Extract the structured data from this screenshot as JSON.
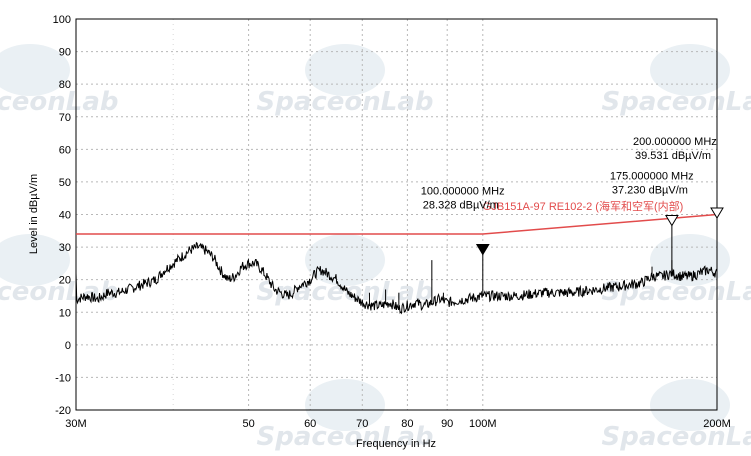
{
  "watermark": {
    "text": "SpaceonLab"
  },
  "chart_data": {
    "type": "line",
    "title": "",
    "xlabel": "Frequency in Hz",
    "ylabel": "Level in dBµV/m",
    "x_scale": "log",
    "xlim_mhz": [
      30,
      200
    ],
    "ylim": [
      -20,
      100
    ],
    "y_ticks": [
      100,
      90,
      80,
      70,
      60,
      50,
      40,
      30,
      20,
      10,
      0,
      -10,
      -20
    ],
    "x_ticks": [
      {
        "value": 30,
        "label": "30M"
      },
      {
        "value": 50,
        "label": "50"
      },
      {
        "value": 60,
        "label": "60"
      },
      {
        "value": 70,
        "label": "70"
      },
      {
        "value": 80,
        "label": "80"
      },
      {
        "value": 90,
        "label": "90"
      },
      {
        "value": 100,
        "label": "100M"
      },
      {
        "value": 200,
        "label": "200M"
      }
    ],
    "grid": true,
    "colors": {
      "limit": "#e24b4b",
      "trace": "#000000"
    },
    "limit_line": {
      "label": "GJB151A-97 RE102-2 (海军和空军(内部)",
      "points": [
        [
          30,
          34
        ],
        [
          100,
          34
        ],
        [
          200,
          40
        ]
      ]
    },
    "series": [
      {
        "points": [
          [
            30,
            14
          ],
          [
            31,
            15
          ],
          [
            32,
            14
          ],
          [
            33,
            16
          ],
          [
            34,
            16
          ],
          [
            35,
            17
          ],
          [
            36,
            18
          ],
          [
            37,
            19
          ],
          [
            38,
            20
          ],
          [
            39,
            23
          ],
          [
            40,
            25
          ],
          [
            41,
            27
          ],
          [
            42,
            29
          ],
          [
            43,
            30
          ],
          [
            44,
            29
          ],
          [
            45,
            27
          ],
          [
            46,
            23
          ],
          [
            47,
            20
          ],
          [
            48,
            21
          ],
          [
            49,
            24
          ],
          [
            50,
            25
          ],
          [
            51,
            25
          ],
          [
            52,
            23
          ],
          [
            53,
            20
          ],
          [
            54,
            17
          ],
          [
            55,
            16
          ],
          [
            56,
            15
          ],
          [
            57,
            16
          ],
          [
            58,
            18
          ],
          [
            59,
            19
          ],
          [
            60,
            20
          ],
          [
            61,
            22
          ],
          [
            62,
            23
          ],
          [
            63,
            22
          ],
          [
            64,
            21
          ],
          [
            65,
            20
          ],
          [
            66,
            18
          ],
          [
            67,
            16
          ],
          [
            68,
            15
          ],
          [
            69,
            14
          ],
          [
            70,
            13
          ],
          [
            72,
            12
          ],
          [
            74,
            12
          ],
          [
            76,
            13
          ],
          [
            78,
            11
          ],
          [
            80,
            12
          ],
          [
            82,
            13
          ],
          [
            84,
            12
          ],
          [
            86,
            13
          ],
          [
            88,
            14
          ],
          [
            90,
            13
          ],
          [
            95,
            14
          ],
          [
            100,
            15
          ],
          [
            110,
            15
          ],
          [
            120,
            16
          ],
          [
            130,
            16
          ],
          [
            140,
            17
          ],
          [
            150,
            18
          ],
          [
            160,
            19
          ],
          [
            165,
            21
          ],
          [
            170,
            21
          ],
          [
            175,
            22
          ],
          [
            180,
            21
          ],
          [
            185,
            21
          ],
          [
            190,
            22
          ],
          [
            195,
            23
          ],
          [
            200,
            22
          ]
        ]
      }
    ],
    "spikes": [
      {
        "x": 71.5,
        "y": 16
      },
      {
        "x": 75,
        "y": 17
      },
      {
        "x": 78,
        "y": 16
      },
      {
        "x": 86,
        "y": 26
      },
      {
        "x": 89,
        "y": 16
      },
      {
        "x": 165,
        "y": 24
      },
      {
        "x": 175,
        "y": 26
      }
    ],
    "markers": [
      {
        "x": 100,
        "y": 28.328,
        "freq": "100.000000 MHz",
        "level": "28.328 dBµV/m",
        "style": "filled"
      },
      {
        "x": 175,
        "y": 37.23,
        "freq": "175.000000 MHz",
        "level": "37.230 dBµV/m",
        "style": "open"
      },
      {
        "x": 200,
        "y": 39.531,
        "freq": "200.000000 MHz",
        "level": "39.531 dBµV/m",
        "style": "open"
      }
    ]
  }
}
